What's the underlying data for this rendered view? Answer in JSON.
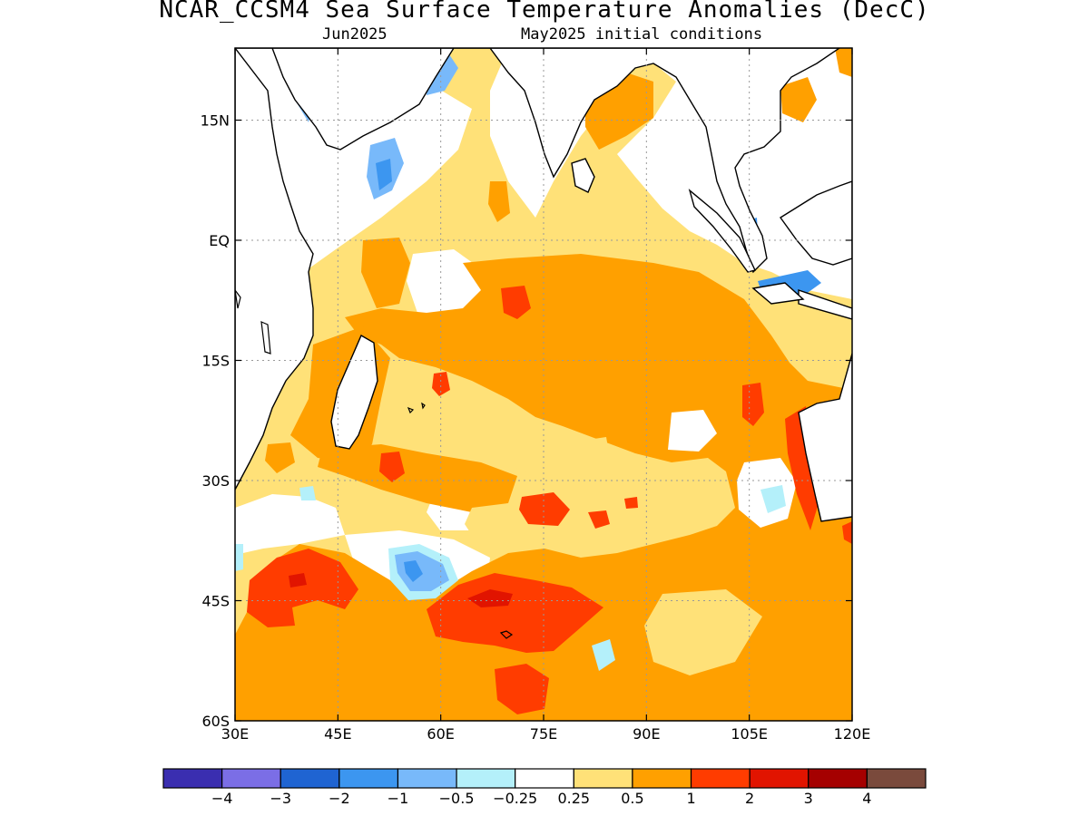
{
  "title": "NCAR_CCSM4 Sea Surface Temperature Anomalies (DecC)",
  "subtitle_left": "Jun2025",
  "subtitle_right": "May2025 initial conditions",
  "map": {
    "lon_range": [
      30,
      120
    ],
    "lat_range": [
      -60,
      24
    ],
    "lat_labels": [
      {
        "lat": 15,
        "text": "15N"
      },
      {
        "lat": 0,
        "text": "EQ"
      },
      {
        "lat": -15,
        "text": "15S"
      },
      {
        "lat": -30,
        "text": "30S"
      },
      {
        "lat": -45,
        "text": "45S"
      },
      {
        "lat": -60,
        "text": "60S"
      }
    ],
    "lon_labels": [
      {
        "lon": 30,
        "text": "30E"
      },
      {
        "lon": 45,
        "text": "45E"
      },
      {
        "lon": 60,
        "text": "60E"
      },
      {
        "lon": 75,
        "text": "75E"
      },
      {
        "lon": 90,
        "text": "90E"
      },
      {
        "lon": 105,
        "text": "105E"
      },
      {
        "lon": 120,
        "text": "120E"
      }
    ],
    "grid": true,
    "background_anomaly_class": "0.25 to 0.5"
  },
  "colorbar": {
    "colors": [
      "#3a2eb0",
      "#7b6ee6",
      "#1f64d2",
      "#3c96f0",
      "#78b9fa",
      "#b4f0fa",
      "#ffffff",
      "#ffe178",
      "#ffa000",
      "#ff3c00",
      "#e11400",
      "#a50000",
      "#7a4a3c"
    ],
    "labels": [
      "−4",
      "−3",
      "−2",
      "−1",
      "−0.5",
      "−0.25",
      "0.25",
      "0.5",
      "1",
      "2",
      "3",
      "4"
    ]
  }
}
